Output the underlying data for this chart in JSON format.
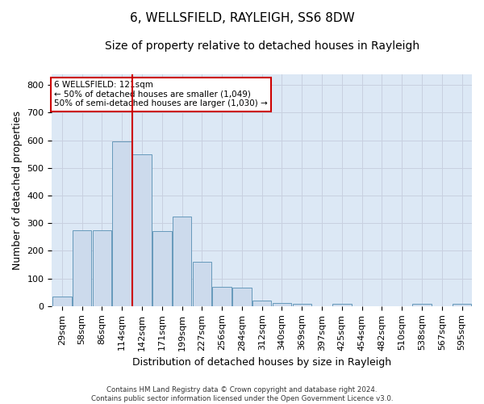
{
  "title_line1": "6, WELLSFIELD, RAYLEIGH, SS6 8DW",
  "title_line2": "Size of property relative to detached houses in Rayleigh",
  "xlabel": "Distribution of detached houses by size in Rayleigh",
  "ylabel": "Number of detached properties",
  "footer": "Contains HM Land Registry data © Crown copyright and database right 2024.\nContains public sector information licensed under the Open Government Licence v3.0.",
  "bar_labels": [
    "29sqm",
    "58sqm",
    "86sqm",
    "114sqm",
    "142sqm",
    "171sqm",
    "199sqm",
    "227sqm",
    "256sqm",
    "284sqm",
    "312sqm",
    "340sqm",
    "369sqm",
    "397sqm",
    "425sqm",
    "454sqm",
    "482sqm",
    "510sqm",
    "538sqm",
    "567sqm",
    "595sqm"
  ],
  "bar_values": [
    35,
    275,
    275,
    595,
    550,
    270,
    325,
    160,
    70,
    68,
    20,
    10,
    8,
    0,
    8,
    0,
    0,
    0,
    8,
    0,
    8
  ],
  "bar_color": "#ccdaec",
  "bar_edge_color": "#6699bb",
  "vline_x": 3.5,
  "vline_color": "#cc0000",
  "annotation_text": "6 WELLSFIELD: 121sqm\n← 50% of detached houses are smaller (1,049)\n50% of semi-detached houses are larger (1,030) →",
  "annotation_box_color": "#cc0000",
  "ylim": [
    0,
    840
  ],
  "yticks": [
    0,
    100,
    200,
    300,
    400,
    500,
    600,
    700,
    800
  ],
  "grid_color": "#c8d0e0",
  "bg_color": "#dce8f5",
  "fig_bg_color": "#ffffff",
  "title_fontsize": 11,
  "subtitle_fontsize": 10,
  "tick_fontsize": 8,
  "ylabel_fontsize": 9,
  "xlabel_fontsize": 9
}
